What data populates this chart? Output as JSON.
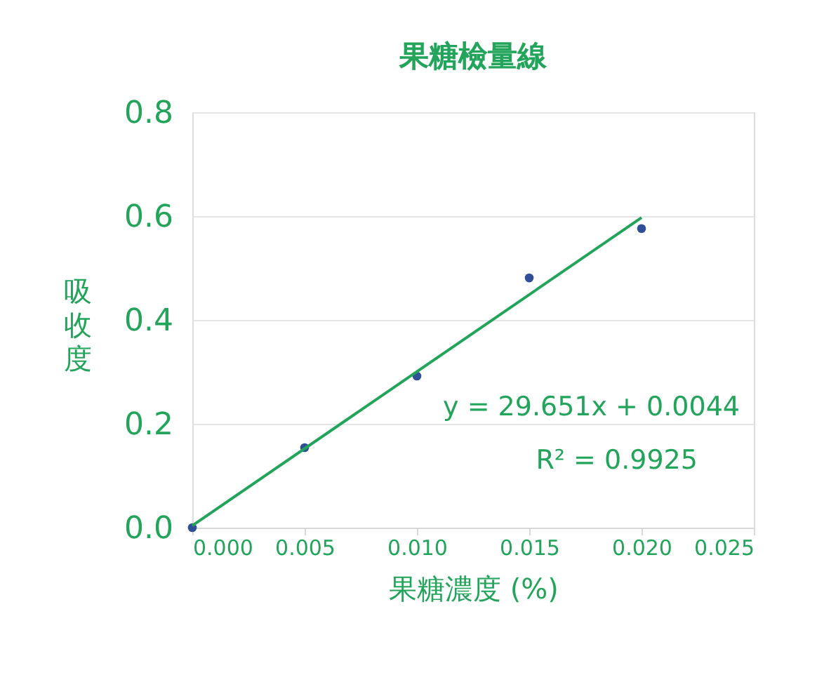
{
  "chart_data": {
    "type": "scatter",
    "title": "果糖檢量線",
    "xlabel": "果糖濃度 (%)",
    "ylabel": "吸收度",
    "x": [
      0,
      0.005,
      0.01,
      0.015,
      0.02
    ],
    "series": [
      {
        "color": "#2f4f96",
        "values": [
          0,
          0.154,
          0.292,
          0.481,
          0.576
        ],
        "marker": "circle"
      },
      {
        "type": "line",
        "color": "#22a55a",
        "x": [
          0,
          0.02
        ],
        "values": [
          0.004,
          0.597
        ],
        "marker": "none",
        "line_style": "solid"
      }
    ],
    "xlim": [
      0,
      0.025
    ],
    "xticks": [
      {
        "value": 0,
        "label": "0.000"
      },
      {
        "value": 0.005,
        "label": "0.005"
      },
      {
        "value": 0.01,
        "label": "0.010"
      },
      {
        "value": 0.015,
        "label": "0.015"
      },
      {
        "value": 0.02,
        "label": "0.020"
      },
      {
        "value": 0.025,
        "label": "0.025"
      }
    ],
    "ylim": [
      0,
      0.8
    ],
    "yticks": [
      {
        "value": 0,
        "label": "0.0"
      },
      {
        "value": 0.2,
        "label": "0.2"
      },
      {
        "value": 0.4,
        "label": "0.4"
      },
      {
        "value": 0.6,
        "label": "0.6"
      },
      {
        "value": 0.8,
        "label": "0.8"
      }
    ],
    "grid": "y",
    "annotations": [
      "y = 29.651x + 0.0044",
      "R² = 0.9925"
    ]
  }
}
